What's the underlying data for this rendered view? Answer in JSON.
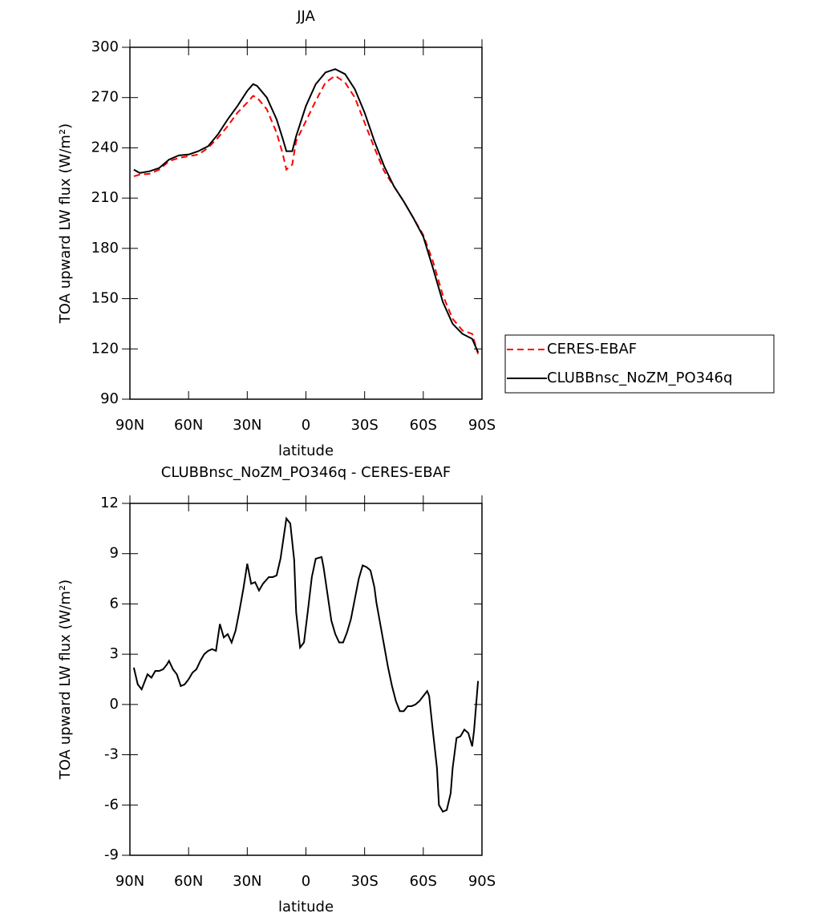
{
  "chart_data": [
    {
      "type": "line",
      "title": "JJA",
      "xlabel": "latitude",
      "ylabel": "TOA upward LW flux (W/m²)",
      "xlim": [
        90,
        -90
      ],
      "xticks": [
        {
          "value": 90,
          "label": "90N"
        },
        {
          "value": 60,
          "label": "60N"
        },
        {
          "value": 30,
          "label": "30N"
        },
        0,
        {
          "value": -30,
          "label": "30S"
        },
        {
          "value": -60,
          "label": "60S"
        },
        {
          "value": -90,
          "label": "90S"
        }
      ],
      "ylim": [
        90,
        300
      ],
      "yticks": [
        90,
        120,
        150,
        180,
        210,
        240,
        270,
        300
      ],
      "legend": "right",
      "x": [
        88,
        85,
        80,
        75,
        70,
        65,
        60,
        55,
        50,
        45,
        40,
        35,
        30,
        27,
        25,
        20,
        15,
        12,
        10,
        7,
        5,
        0,
        -5,
        -10,
        -15,
        -20,
        -25,
        -30,
        -35,
        -40,
        -45,
        -50,
        -55,
        -60,
        -65,
        -70,
        -75,
        -80,
        -85,
        -88
      ],
      "series": [
        {
          "name": "CERES-EBAF",
          "color": "#ff0000",
          "dashed": true,
          "values": [
            223,
            224,
            224.5,
            227,
            232,
            234,
            235,
            236,
            240,
            246,
            253,
            261,
            267,
            271,
            270,
            263,
            249,
            237,
            227,
            230,
            244,
            256,
            268,
            279,
            283,
            279,
            270,
            255,
            240,
            226,
            217,
            208,
            198,
            188,
            172,
            152,
            138,
            131,
            129,
            117
          ]
        },
        {
          "name": "CLUBBnsc_NoZM_PO346q",
          "color": "#000000",
          "dashed": false,
          "values": [
            227,
            225,
            226,
            228,
            233,
            235.5,
            236,
            238,
            241,
            248,
            257,
            265,
            274,
            278,
            277,
            270,
            257,
            246,
            238,
            238,
            247,
            265,
            278,
            285,
            287,
            284,
            275,
            261,
            244,
            229,
            217,
            208,
            198,
            187,
            168,
            148,
            135,
            129,
            126,
            118
          ]
        }
      ]
    },
    {
      "type": "line",
      "title": "CLUBBnsc_NoZM_PO346q - CERES-EBAF",
      "xlabel": "latitude",
      "ylabel": "TOA upward LW flux (W/m²)",
      "xlim": [
        90,
        -90
      ],
      "xticks": [
        {
          "value": 90,
          "label": "90N"
        },
        {
          "value": 60,
          "label": "60N"
        },
        {
          "value": 30,
          "label": "30N"
        },
        0,
        {
          "value": -30,
          "label": "30S"
        },
        {
          "value": -60,
          "label": "60S"
        },
        {
          "value": -90,
          "label": "90S"
        }
      ],
      "ylim": [
        -9,
        12
      ],
      "yticks": [
        -9,
        -6,
        -3,
        0,
        3,
        6,
        9,
        12
      ],
      "x": [
        88,
        86,
        84,
        83,
        81,
        79,
        77,
        75,
        73,
        71,
        70,
        68,
        66,
        64,
        62,
        60,
        58,
        56,
        54,
        52,
        50,
        48,
        46,
        44,
        42,
        40,
        38,
        36,
        34,
        32,
        30,
        28,
        26,
        24,
        22,
        19,
        17,
        15,
        13,
        12,
        10,
        8,
        6,
        5,
        3,
        1,
        -1,
        -3,
        -5,
        -8,
        -9,
        -11,
        -13,
        -15,
        -17,
        -19,
        -21,
        -23,
        -25,
        -27,
        -29,
        -31,
        -33,
        -35,
        -36,
        -38,
        -40,
        -42,
        -44,
        -46,
        -48,
        -50,
        -52,
        -54,
        -56,
        -58,
        -60,
        -62,
        -63,
        -65,
        -67,
        -68,
        -70,
        -72,
        -74,
        -75,
        -77,
        -79,
        -81,
        -83,
        -85,
        -86,
        -88
      ],
      "series": [
        {
          "color": "#000000",
          "dashed": false,
          "values": [
            2.2,
            1.2,
            0.9,
            1.2,
            1.8,
            1.6,
            2.0,
            2.0,
            2.1,
            2.4,
            2.6,
            2.1,
            1.8,
            1.1,
            1.2,
            1.5,
            1.9,
            2.1,
            2.6,
            3.0,
            3.2,
            3.3,
            3.2,
            4.8,
            4.0,
            4.2,
            3.7,
            4.4,
            5.6,
            6.9,
            8.4,
            7.2,
            7.3,
            6.8,
            7.2,
            7.6,
            7.6,
            7.7,
            8.7,
            9.5,
            11.1,
            10.8,
            8.6,
            5.5,
            3.4,
            3.7,
            5.6,
            7.6,
            8.7,
            8.8,
            8.2,
            6.6,
            5.0,
            4.2,
            3.7,
            3.7,
            4.3,
            5.1,
            6.3,
            7.5,
            8.3,
            8.2,
            8.0,
            7.0,
            6.1,
            4.8,
            3.5,
            2.2,
            1.1,
            0.2,
            -0.4,
            -0.4,
            -0.1,
            -0.1,
            0,
            0.2,
            0.5,
            0.8,
            0.5,
            -1.7,
            -3.8,
            -6.0,
            -6.4,
            -6.3,
            -5.3,
            -3.8,
            -2.0,
            -1.9,
            -1.5,
            -1.7,
            -2.5,
            -1.5,
            1.4
          ]
        }
      ]
    }
  ]
}
